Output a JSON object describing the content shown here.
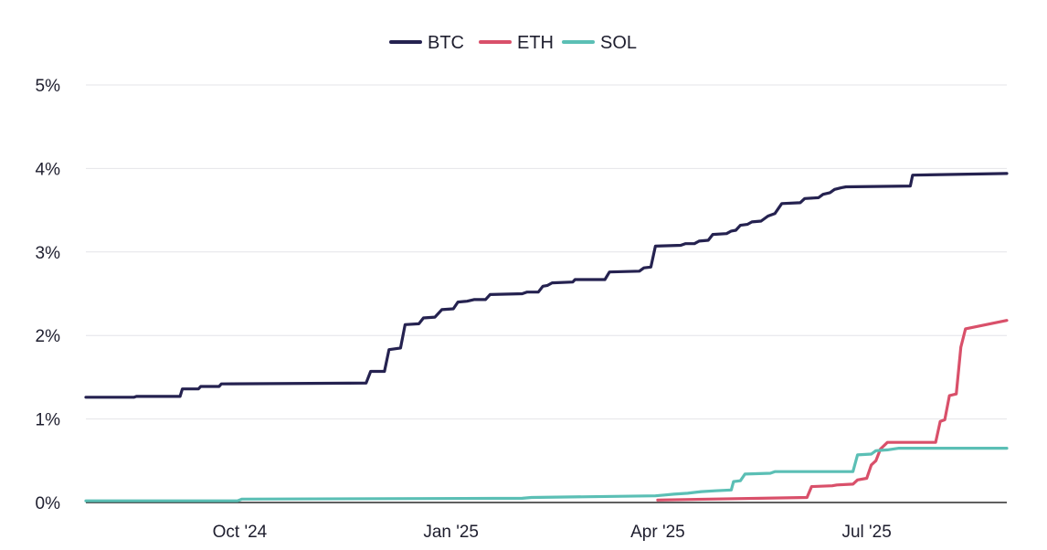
{
  "chart_data": {
    "type": "line",
    "title": "",
    "xlabel": "",
    "ylabel": "",
    "x_range": [
      "2024-07-26",
      "2025-08-31"
    ],
    "ylim": [
      0,
      5
    ],
    "y_ticks": [
      {
        "value": 0,
        "label": "0%"
      },
      {
        "value": 1,
        "label": "1%"
      },
      {
        "value": 2,
        "label": "2%"
      },
      {
        "value": 3,
        "label": "3%"
      },
      {
        "value": 4,
        "label": "4%"
      },
      {
        "value": 5,
        "label": "5%"
      }
    ],
    "x_ticks": [
      {
        "date": "2024-10-01",
        "label": "Oct '24"
      },
      {
        "date": "2025-01-01",
        "label": "Jan '25"
      },
      {
        "date": "2025-04-01",
        "label": "Apr '25"
      },
      {
        "date": "2025-07-01",
        "label": "Jul '25"
      }
    ],
    "grid": {
      "horizontal": true,
      "vertical": false
    },
    "legend_position": "top-center",
    "series": [
      {
        "name": "BTC",
        "color": "#252250",
        "points": [
          [
            "2024-07-26",
            1.26
          ],
          [
            "2024-08-16",
            1.26
          ],
          [
            "2024-08-17",
            1.27
          ],
          [
            "2024-09-05",
            1.27
          ],
          [
            "2024-09-06",
            1.36
          ],
          [
            "2024-09-13",
            1.36
          ],
          [
            "2024-09-14",
            1.39
          ],
          [
            "2024-09-22",
            1.39
          ],
          [
            "2024-09-23",
            1.42
          ],
          [
            "2024-11-25",
            1.43
          ],
          [
            "2024-11-27",
            1.57
          ],
          [
            "2024-12-03",
            1.57
          ],
          [
            "2024-12-05",
            1.83
          ],
          [
            "2024-12-10",
            1.85
          ],
          [
            "2024-12-12",
            2.13
          ],
          [
            "2024-12-18",
            2.14
          ],
          [
            "2024-12-20",
            2.21
          ],
          [
            "2024-12-25",
            2.22
          ],
          [
            "2024-12-28",
            2.31
          ],
          [
            "2025-01-02",
            2.32
          ],
          [
            "2025-01-04",
            2.4
          ],
          [
            "2025-01-08",
            2.41
          ],
          [
            "2025-01-11",
            2.43
          ],
          [
            "2025-01-16",
            2.43
          ],
          [
            "2025-01-18",
            2.49
          ],
          [
            "2025-02-01",
            2.5
          ],
          [
            "2025-02-03",
            2.52
          ],
          [
            "2025-02-08",
            2.52
          ],
          [
            "2025-02-10",
            2.59
          ],
          [
            "2025-02-12",
            2.6
          ],
          [
            "2025-02-14",
            2.63
          ],
          [
            "2025-02-23",
            2.64
          ],
          [
            "2025-02-24",
            2.67
          ],
          [
            "2025-03-09",
            2.67
          ],
          [
            "2025-03-11",
            2.76
          ],
          [
            "2025-03-24",
            2.77
          ],
          [
            "2025-03-26",
            2.81
          ],
          [
            "2025-03-29",
            2.82
          ],
          [
            "2025-03-31",
            3.07
          ],
          [
            "2025-04-11",
            3.08
          ],
          [
            "2025-04-13",
            3.1
          ],
          [
            "2025-04-17",
            3.1
          ],
          [
            "2025-04-19",
            3.13
          ],
          [
            "2025-04-23",
            3.14
          ],
          [
            "2025-04-25",
            3.21
          ],
          [
            "2025-05-01",
            3.22
          ],
          [
            "2025-05-03",
            3.25
          ],
          [
            "2025-05-05",
            3.26
          ],
          [
            "2025-05-07",
            3.32
          ],
          [
            "2025-05-10",
            3.33
          ],
          [
            "2025-05-12",
            3.36
          ],
          [
            "2025-05-16",
            3.37
          ],
          [
            "2025-05-19",
            3.43
          ],
          [
            "2025-05-22",
            3.46
          ],
          [
            "2025-05-25",
            3.58
          ],
          [
            "2025-06-02",
            3.59
          ],
          [
            "2025-06-04",
            3.64
          ],
          [
            "2025-06-10",
            3.65
          ],
          [
            "2025-06-12",
            3.69
          ],
          [
            "2025-06-15",
            3.71
          ],
          [
            "2025-06-17",
            3.75
          ],
          [
            "2025-06-20",
            3.77
          ],
          [
            "2025-06-22",
            3.78
          ],
          [
            "2025-07-20",
            3.79
          ],
          [
            "2025-07-21",
            3.92
          ],
          [
            "2025-08-31",
            3.94
          ]
        ]
      },
      {
        "name": "ETH",
        "color": "#d9506a",
        "points": [
          [
            "2025-04-01",
            0.03
          ],
          [
            "2025-06-05",
            0.06
          ],
          [
            "2025-06-07",
            0.19
          ],
          [
            "2025-06-16",
            0.2
          ],
          [
            "2025-06-18",
            0.21
          ],
          [
            "2025-06-25",
            0.22
          ],
          [
            "2025-06-27",
            0.27
          ],
          [
            "2025-07-01",
            0.29
          ],
          [
            "2025-07-03",
            0.45
          ],
          [
            "2025-07-05",
            0.5
          ],
          [
            "2025-07-07",
            0.64
          ],
          [
            "2025-07-10",
            0.72
          ],
          [
            "2025-07-31",
            0.72
          ],
          [
            "2025-08-02",
            0.97
          ],
          [
            "2025-08-04",
            0.99
          ],
          [
            "2025-08-06",
            1.28
          ],
          [
            "2025-08-09",
            1.3
          ],
          [
            "2025-08-11",
            1.86
          ],
          [
            "2025-08-13",
            2.08
          ],
          [
            "2025-08-31",
            2.18
          ]
        ]
      },
      {
        "name": "SOL",
        "color": "#5bbfb5",
        "points": [
          [
            "2024-07-26",
            0.02
          ],
          [
            "2024-09-30",
            0.02
          ],
          [
            "2024-10-02",
            0.04
          ],
          [
            "2025-02-01",
            0.05
          ],
          [
            "2025-02-05",
            0.06
          ],
          [
            "2025-03-31",
            0.08
          ],
          [
            "2025-04-04",
            0.09
          ],
          [
            "2025-04-08",
            0.1
          ],
          [
            "2025-04-14",
            0.11
          ],
          [
            "2025-04-20",
            0.13
          ],
          [
            "2025-04-26",
            0.14
          ],
          [
            "2025-05-03",
            0.15
          ],
          [
            "2025-05-04",
            0.25
          ],
          [
            "2025-05-07",
            0.26
          ],
          [
            "2025-05-09",
            0.34
          ],
          [
            "2025-05-20",
            0.35
          ],
          [
            "2025-05-22",
            0.37
          ],
          [
            "2025-06-25",
            0.37
          ],
          [
            "2025-06-27",
            0.57
          ],
          [
            "2025-07-03",
            0.58
          ],
          [
            "2025-07-05",
            0.62
          ],
          [
            "2025-07-10",
            0.63
          ],
          [
            "2025-07-15",
            0.65
          ],
          [
            "2025-08-31",
            0.65
          ]
        ]
      }
    ]
  }
}
